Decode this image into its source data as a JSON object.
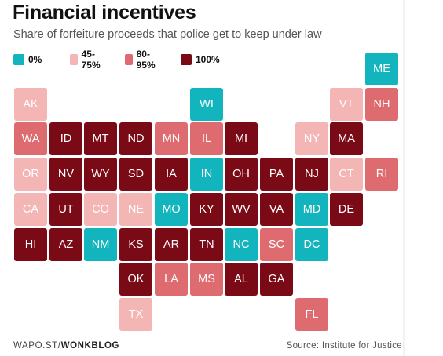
{
  "chart_data": {
    "type": "tile-map",
    "title": "Financial incentives",
    "subtitle": "Share of forfeiture proceeds that police get to keep under law",
    "legend": [
      {
        "key": "0",
        "label": "0%",
        "color": "#12b5bd"
      },
      {
        "key": "45",
        "label": "45-75%",
        "color": "#f4b5b5"
      },
      {
        "key": "80",
        "label": "80-95%",
        "color": "#dd6b6f"
      },
      {
        "key": "100",
        "label": "100%",
        "color": "#7a0b16"
      }
    ],
    "states": [
      {
        "abbr": "ME",
        "row": 0,
        "col": 10,
        "cat": "0"
      },
      {
        "abbr": "AK",
        "row": 1,
        "col": 0,
        "cat": "45"
      },
      {
        "abbr": "WI",
        "row": 1,
        "col": 5,
        "cat": "0"
      },
      {
        "abbr": "VT",
        "row": 1,
        "col": 9,
        "cat": "45"
      },
      {
        "abbr": "NH",
        "row": 1,
        "col": 10,
        "cat": "80"
      },
      {
        "abbr": "WA",
        "row": 2,
        "col": 0,
        "cat": "80"
      },
      {
        "abbr": "ID",
        "row": 2,
        "col": 1,
        "cat": "100"
      },
      {
        "abbr": "MT",
        "row": 2,
        "col": 2,
        "cat": "100"
      },
      {
        "abbr": "ND",
        "row": 2,
        "col": 3,
        "cat": "100"
      },
      {
        "abbr": "MN",
        "row": 2,
        "col": 4,
        "cat": "80"
      },
      {
        "abbr": "IL",
        "row": 2,
        "col": 5,
        "cat": "80"
      },
      {
        "abbr": "MI",
        "row": 2,
        "col": 6,
        "cat": "100"
      },
      {
        "abbr": "NY",
        "row": 2,
        "col": 8,
        "cat": "45"
      },
      {
        "abbr": "MA",
        "row": 2,
        "col": 9,
        "cat": "100"
      },
      {
        "abbr": "OR",
        "row": 3,
        "col": 0,
        "cat": "45"
      },
      {
        "abbr": "NV",
        "row": 3,
        "col": 1,
        "cat": "100"
      },
      {
        "abbr": "WY",
        "row": 3,
        "col": 2,
        "cat": "100"
      },
      {
        "abbr": "SD",
        "row": 3,
        "col": 3,
        "cat": "100"
      },
      {
        "abbr": "IA",
        "row": 3,
        "col": 4,
        "cat": "100"
      },
      {
        "abbr": "IN",
        "row": 3,
        "col": 5,
        "cat": "0"
      },
      {
        "abbr": "OH",
        "row": 3,
        "col": 6,
        "cat": "100"
      },
      {
        "abbr": "PA",
        "row": 3,
        "col": 7,
        "cat": "100"
      },
      {
        "abbr": "NJ",
        "row": 3,
        "col": 8,
        "cat": "100"
      },
      {
        "abbr": "CT",
        "row": 3,
        "col": 9,
        "cat": "45"
      },
      {
        "abbr": "RI",
        "row": 3,
        "col": 10,
        "cat": "80"
      },
      {
        "abbr": "CA",
        "row": 4,
        "col": 0,
        "cat": "45"
      },
      {
        "abbr": "UT",
        "row": 4,
        "col": 1,
        "cat": "100"
      },
      {
        "abbr": "CO",
        "row": 4,
        "col": 2,
        "cat": "45"
      },
      {
        "abbr": "NE",
        "row": 4,
        "col": 3,
        "cat": "45"
      },
      {
        "abbr": "MO",
        "row": 4,
        "col": 4,
        "cat": "0"
      },
      {
        "abbr": "KY",
        "row": 4,
        "col": 5,
        "cat": "100"
      },
      {
        "abbr": "WV",
        "row": 4,
        "col": 6,
        "cat": "100"
      },
      {
        "abbr": "VA",
        "row": 4,
        "col": 7,
        "cat": "100"
      },
      {
        "abbr": "MD",
        "row": 4,
        "col": 8,
        "cat": "0"
      },
      {
        "abbr": "DE",
        "row": 4,
        "col": 9,
        "cat": "100"
      },
      {
        "abbr": "HI",
        "row": 5,
        "col": 0,
        "cat": "100"
      },
      {
        "abbr": "AZ",
        "row": 5,
        "col": 1,
        "cat": "100"
      },
      {
        "abbr": "NM",
        "row": 5,
        "col": 2,
        "cat": "0"
      },
      {
        "abbr": "KS",
        "row": 5,
        "col": 3,
        "cat": "100"
      },
      {
        "abbr": "AR",
        "row": 5,
        "col": 4,
        "cat": "100"
      },
      {
        "abbr": "TN",
        "row": 5,
        "col": 5,
        "cat": "100"
      },
      {
        "abbr": "NC",
        "row": 5,
        "col": 6,
        "cat": "0"
      },
      {
        "abbr": "SC",
        "row": 5,
        "col": 7,
        "cat": "80"
      },
      {
        "abbr": "DC",
        "row": 5,
        "col": 8,
        "cat": "0"
      },
      {
        "abbr": "OK",
        "row": 6,
        "col": 3,
        "cat": "100"
      },
      {
        "abbr": "LA",
        "row": 6,
        "col": 4,
        "cat": "80"
      },
      {
        "abbr": "MS",
        "row": 6,
        "col": 5,
        "cat": "80"
      },
      {
        "abbr": "AL",
        "row": 6,
        "col": 6,
        "cat": "100"
      },
      {
        "abbr": "GA",
        "row": 6,
        "col": 7,
        "cat": "100"
      },
      {
        "abbr": "TX",
        "row": 7,
        "col": 3,
        "cat": "45"
      },
      {
        "abbr": "FL",
        "row": 7,
        "col": 8,
        "cat": "80"
      }
    ]
  },
  "footer": {
    "left_prefix": "WAPO.ST/",
    "left_bold": "WONKBLOG",
    "right": "Source: Institute for Justice"
  }
}
